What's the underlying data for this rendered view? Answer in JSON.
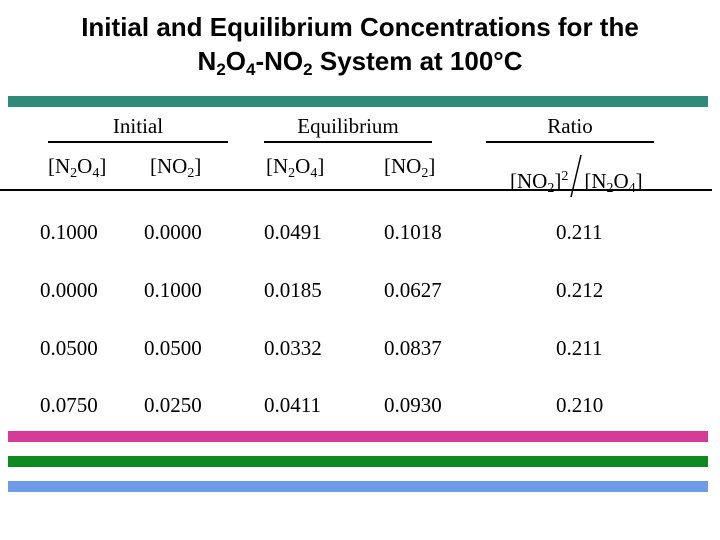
{
  "title": {
    "line1": "Initial and Equilibrium Concentrations for the",
    "line2": {
      "n": "N",
      "n_sub": "2",
      "o": "O",
      "o_sub": "4",
      "mid": "-NO",
      "mid_sub": "2",
      "rest": " System at 100°C"
    }
  },
  "groups": {
    "initial": "Initial",
    "equilibrium": "Equilibrium",
    "ratio": "Ratio"
  },
  "columns": {
    "n2o4": {
      "a": "[N",
      "b": "O",
      "c": "]",
      "sub1": "2",
      "sub2": "4"
    },
    "no2": {
      "a": "[NO",
      "b": "]",
      "sub": "2"
    },
    "ratio": {
      "no2": "[NO",
      "no2_end": "]",
      "sub": "2",
      "sup": "2",
      "n2o4": "[N",
      "n2o4_mid": "O",
      "n2o4_end": "]",
      "sub1": "2",
      "sub2": "4"
    }
  },
  "rows": [
    [
      "0.1000",
      "0.0000",
      "0.0491",
      "0.1018",
      "0.211"
    ],
    [
      "0.0000",
      "0.1000",
      "0.0185",
      "0.0627",
      "0.212"
    ],
    [
      "0.0500",
      "0.0500",
      "0.0332",
      "0.0837",
      "0.211"
    ],
    [
      "0.0750",
      "0.0250",
      "0.0411",
      "0.0930",
      "0.210"
    ]
  ],
  "colors": {
    "teal": "#2E8B7A",
    "magenta": "#D63C97",
    "green": "#0F8A1E",
    "blue": "#6E9BE8"
  }
}
